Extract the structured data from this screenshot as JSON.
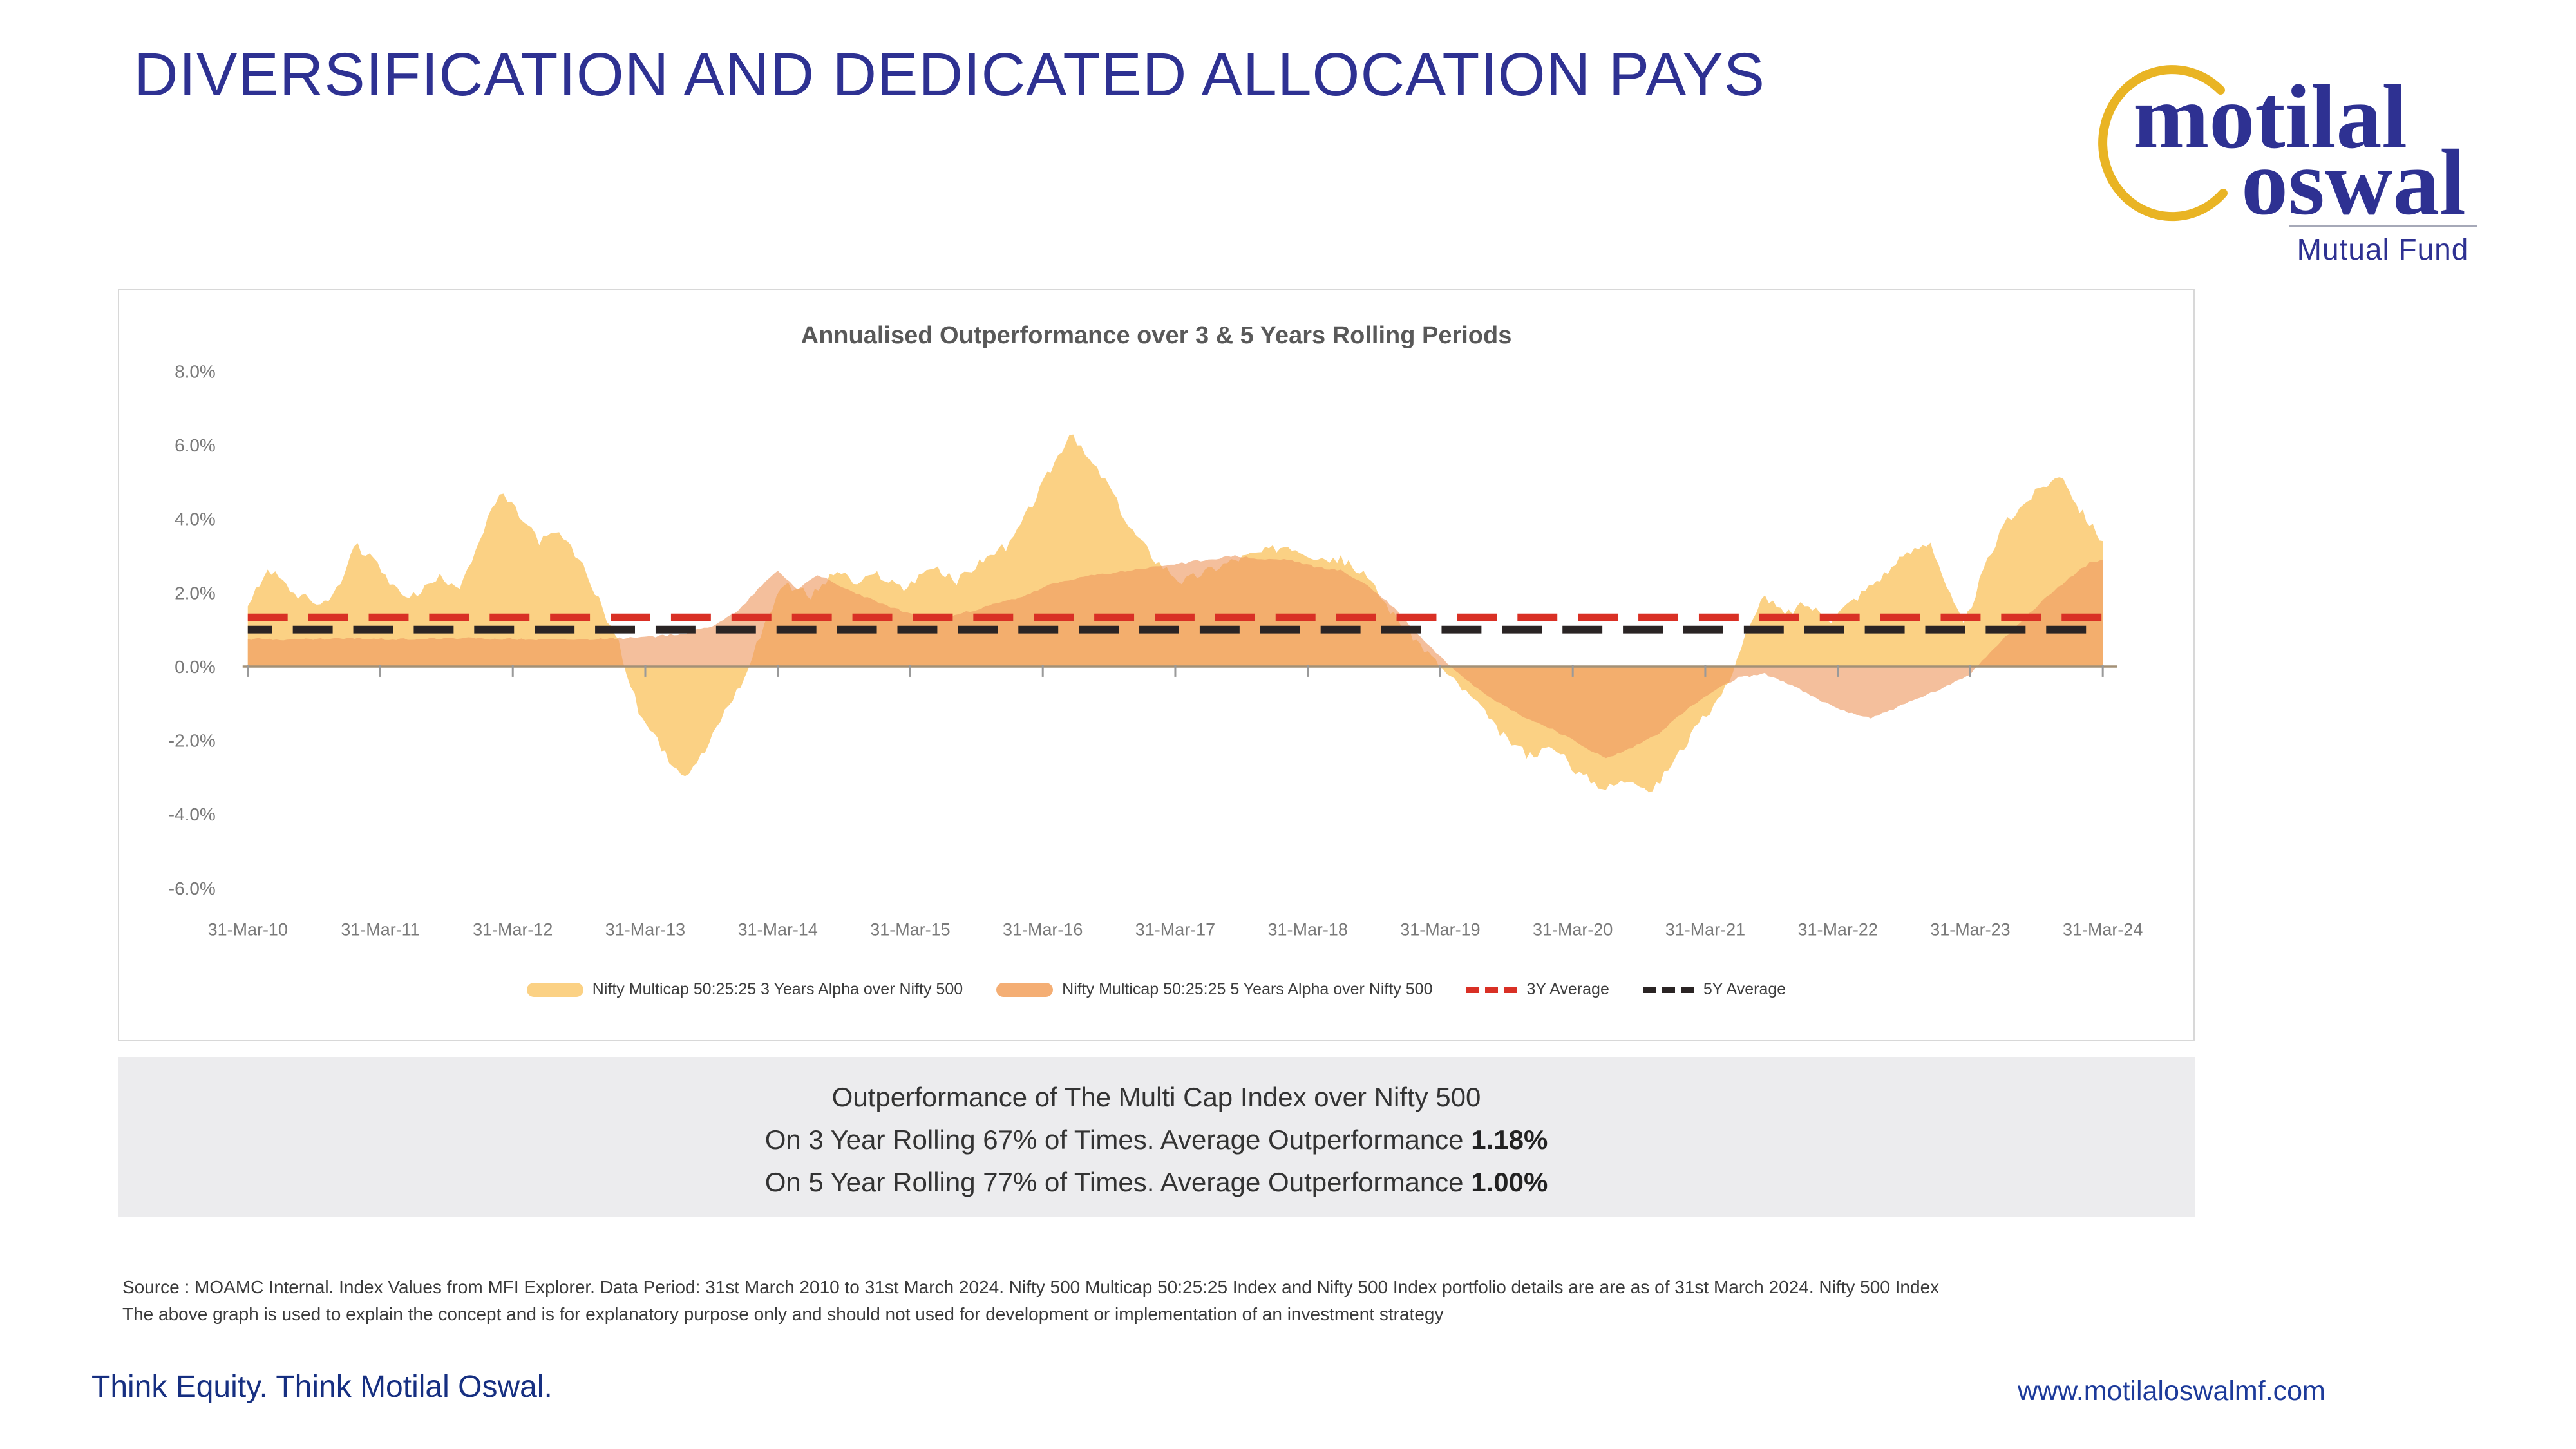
{
  "slide": {
    "title": "DIVERSIFICATION AND DEDICATED ALLOCATION PAYS",
    "footer_left": "Think Equity. Think Motilal Oswal.",
    "footer_right": "www.motilaloswalmf.com"
  },
  "logo": {
    "word1": "motilal",
    "word2": "oswal",
    "subtitle": "Mutual Fund",
    "blue": "#2e3192",
    "gold": "#e9b424"
  },
  "summary_box": {
    "line1": "Outperformance of The Multi Cap Index over Nifty 500",
    "line2_prefix": "On 3 Year Rolling 67% of Times. Average Outperformance ",
    "line2_value": "1.18%",
    "line3_prefix": "On 5 Year Rolling 77% of Times. Average Outperformance ",
    "line3_value": "1.00%"
  },
  "source_note": {
    "line1": "Source : MOAMC Internal. Index Values from MFI Explorer. Data Period: 31st March 2010 to 31st March 2024. Nifty 500 Multicap 50:25:25 Index and Nifty 500 Index portfolio details are are as of 31st March 2024.  Nifty 500 Index",
    "line2": "The above graph is used to explain the concept and is for explanatory purpose only and should not used for development or implementation of an investment strategy"
  },
  "chart_data": {
    "type": "area",
    "title": "Annualised Outperformance over 3 & 5 Years Rolling Periods",
    "xlabel": "",
    "ylabel": "",
    "ylim": [
      -6.8,
      8.6
    ],
    "x_range_years": [
      2010.25,
      2024.25
    ],
    "grid": false,
    "legend_position": "bottom",
    "y_ticks": [
      {
        "label": "8.0%",
        "value": 8
      },
      {
        "label": "6.0%",
        "value": 6
      },
      {
        "label": "4.0%",
        "value": 4
      },
      {
        "label": "2.0%",
        "value": 2
      },
      {
        "label": "0.0%",
        "value": 0
      },
      {
        "label": "-2.0%",
        "value": -2
      },
      {
        "label": "-4.0%",
        "value": -4
      },
      {
        "label": "-6.0%",
        "value": -6
      }
    ],
    "x_ticks": [
      "31-Mar-10",
      "31-Mar-11",
      "31-Mar-12",
      "31-Mar-13",
      "31-Mar-14",
      "31-Mar-15",
      "31-Mar-16",
      "31-Mar-17",
      "31-Mar-18",
      "31-Mar-19",
      "31-Mar-20",
      "31-Mar-21",
      "31-Mar-22",
      "31-Mar-23",
      "31-Mar-24"
    ],
    "series": [
      {
        "name": "Nifty Multicap 50:25:25 3 Years Alpha over Nifty 500",
        "color": "#FBD184",
        "opacity": 1.0,
        "x": [
          2010.25,
          2010.4,
          2010.6,
          2010.8,
          2010.95,
          2011.05,
          2011.2,
          2011.35,
          2011.5,
          2011.7,
          2011.85,
          2012.0,
          2012.15,
          2012.3,
          2012.45,
          2012.6,
          2012.75,
          2012.9,
          2013.05,
          2013.2,
          2013.4,
          2013.55,
          2013.7,
          2013.85,
          2014.0,
          2014.15,
          2014.3,
          2014.5,
          2014.7,
          2014.85,
          2015.0,
          2015.2,
          2015.4,
          2015.6,
          2015.8,
          2016.0,
          2016.2,
          2016.45,
          2016.6,
          2016.75,
          2016.9,
          2017.1,
          2017.3,
          2017.5,
          2017.7,
          2017.9,
          2018.1,
          2018.3,
          2018.5,
          2018.7,
          2018.9,
          2019.1,
          2019.3,
          2019.5,
          2019.7,
          2019.9,
          2020.1,
          2020.3,
          2020.5,
          2020.7,
          2020.85,
          2021.0,
          2021.2,
          2021.4,
          2021.55,
          2021.7,
          2021.85,
          2022.0,
          2022.2,
          2022.4,
          2022.6,
          2022.8,
          2022.95,
          2023.1,
          2023.2,
          2023.35,
          2023.5,
          2023.65,
          2023.8,
          2023.95,
          2024.05,
          2024.15,
          2024.25
        ],
        "values": [
          1.6,
          2.7,
          2.0,
          1.7,
          2.2,
          3.3,
          2.9,
          2.1,
          1.9,
          2.4,
          2.2,
          3.4,
          4.7,
          4.1,
          3.4,
          3.6,
          2.9,
          1.8,
          0.6,
          -1.2,
          -2.4,
          -2.9,
          -2.3,
          -1.2,
          -0.3,
          1.2,
          2.3,
          1.9,
          2.6,
          2.2,
          2.5,
          2.1,
          2.7,
          2.3,
          2.9,
          3.3,
          4.6,
          6.3,
          5.6,
          4.9,
          3.8,
          2.9,
          2.3,
          2.6,
          2.9,
          3.1,
          3.3,
          3.0,
          2.9,
          2.4,
          1.4,
          0.6,
          -0.2,
          -0.9,
          -1.8,
          -2.4,
          -2.2,
          -2.9,
          -3.3,
          -3.0,
          -3.4,
          -2.6,
          -1.6,
          -0.6,
          0.8,
          1.9,
          1.4,
          1.7,
          1.3,
          1.9,
          2.5,
          3.1,
          3.4,
          1.9,
          1.1,
          2.6,
          3.8,
          4.4,
          4.9,
          5.2,
          4.4,
          3.9,
          3.4
        ]
      },
      {
        "name": "Nifty Multicap 50:25:25 5 Years Alpha over Nifty 500",
        "color": "rgba(238,152,96,0.62)",
        "opacity": 1.0,
        "x": [
          2010.25,
          2010.6,
          2011.0,
          2011.4,
          2011.8,
          2012.2,
          2012.6,
          2013.0,
          2013.3,
          2013.55,
          2013.75,
          2013.95,
          2014.1,
          2014.25,
          2014.4,
          2014.55,
          2014.7,
          2014.9,
          2015.1,
          2015.3,
          2015.5,
          2015.7,
          2015.9,
          2016.1,
          2016.3,
          2016.5,
          2016.7,
          2016.9,
          2017.1,
          2017.3,
          2017.5,
          2017.7,
          2017.9,
          2018.1,
          2018.3,
          2018.5,
          2018.7,
          2018.9,
          2019.1,
          2019.3,
          2019.5,
          2019.7,
          2019.9,
          2020.1,
          2020.3,
          2020.5,
          2020.7,
          2020.9,
          2021.1,
          2021.3,
          2021.5,
          2021.7,
          2021.9,
          2022.1,
          2022.3,
          2022.5,
          2022.7,
          2022.9,
          2023.1,
          2023.25,
          2023.4,
          2023.6,
          2023.8,
          2024.0,
          2024.15,
          2024.25
        ],
        "values": [
          0.75,
          0.73,
          0.76,
          0.74,
          0.77,
          0.75,
          0.73,
          0.76,
          0.8,
          0.9,
          1.1,
          1.5,
          2.1,
          2.6,
          2.1,
          2.5,
          2.2,
          1.9,
          1.6,
          1.4,
          1.3,
          1.5,
          1.7,
          1.9,
          2.2,
          2.4,
          2.5,
          2.6,
          2.7,
          2.8,
          2.9,
          3.0,
          2.9,
          2.9,
          2.7,
          2.6,
          2.2,
          1.6,
          0.8,
          0.1,
          -0.5,
          -1.0,
          -1.4,
          -1.7,
          -2.1,
          -2.5,
          -2.2,
          -1.8,
          -1.2,
          -0.7,
          -0.3,
          -0.2,
          -0.5,
          -0.9,
          -1.2,
          -1.4,
          -1.1,
          -0.8,
          -0.5,
          -0.2,
          0.4,
          1.1,
          1.8,
          2.4,
          2.8,
          2.9
        ]
      }
    ],
    "avg_lines": [
      {
        "label": "3Y Average",
        "value": 1.18,
        "color": "#d93025"
      },
      {
        "label": "5Y Average",
        "value": 1.0,
        "color": "#2a2424"
      }
    ],
    "legend": [
      {
        "marker": "area",
        "color": "#FBD184",
        "label": "Nifty Multicap 50:25:25 3 Years Alpha over Nifty 500"
      },
      {
        "marker": "area",
        "color": "#F4AE74",
        "label": "Nifty Multicap 50:25:25 5 Years Alpha over Nifty 500"
      },
      {
        "marker": "dash",
        "color": "#d93025",
        "label": "3Y Average"
      },
      {
        "marker": "dash",
        "color": "#2a2424",
        "label": "5Y Average"
      }
    ],
    "axis_color": "#a39177",
    "tick_text_color": "#7a7a7a"
  }
}
